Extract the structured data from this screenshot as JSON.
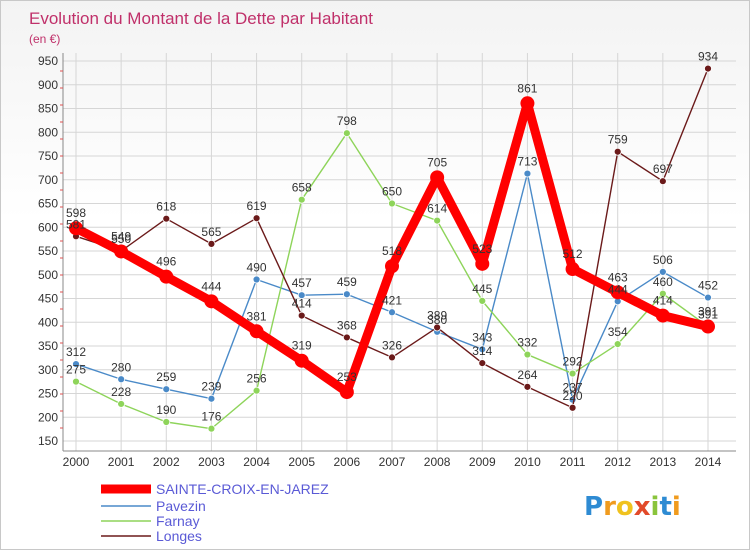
{
  "chart_data": {
    "type": "line",
    "title": "Evolution du Montant de la Dette par Habitant",
    "subtitle": "(en €)",
    "xlabel": "",
    "ylabel": "",
    "categories": [
      "2000",
      "2001",
      "2002",
      "2003",
      "2004",
      "2005",
      "2006",
      "2007",
      "2008",
      "2009",
      "2010",
      "2011",
      "2012",
      "2013",
      "2014"
    ],
    "ylim": [
      150,
      950
    ],
    "yticks": [
      150,
      200,
      250,
      300,
      350,
      400,
      450,
      500,
      550,
      600,
      650,
      700,
      750,
      800,
      850,
      900,
      950
    ],
    "grid": true,
    "legend_position": "bottom-left",
    "series": [
      {
        "name": "SAINTE-CROIX-EN-JAREZ",
        "color": "#ff0000",
        "values": [
          598,
          549,
          496,
          444,
          381,
          319,
          253,
          518,
          705,
          523,
          861,
          512,
          463,
          414,
          391
        ]
      },
      {
        "name": "Pavezin",
        "color": "#4a8ac8",
        "values": [
          312,
          280,
          259,
          239,
          490,
          457,
          459,
          421,
          380,
          343,
          713,
          237,
          444,
          506,
          452
        ]
      },
      {
        "name": "Farnay",
        "color": "#8ed45a",
        "values": [
          275,
          228,
          190,
          176,
          256,
          658,
          798,
          650,
          614,
          445,
          332,
          292,
          354,
          460,
          391
        ]
      },
      {
        "name": "Longes",
        "color": "#6b1a1a",
        "values": [
          581,
          550,
          618,
          565,
          619,
          414,
          368,
          326,
          389,
          314,
          264,
          220,
          759,
          697,
          934
        ]
      }
    ]
  },
  "legend": {
    "items": [
      {
        "label": "SAINTE-CROIX-EN-JAREZ"
      },
      {
        "label": "Pavezin"
      },
      {
        "label": "Farnay"
      },
      {
        "label": "Longes"
      }
    ]
  },
  "brand": {
    "logo_text": "Proxiti"
  }
}
